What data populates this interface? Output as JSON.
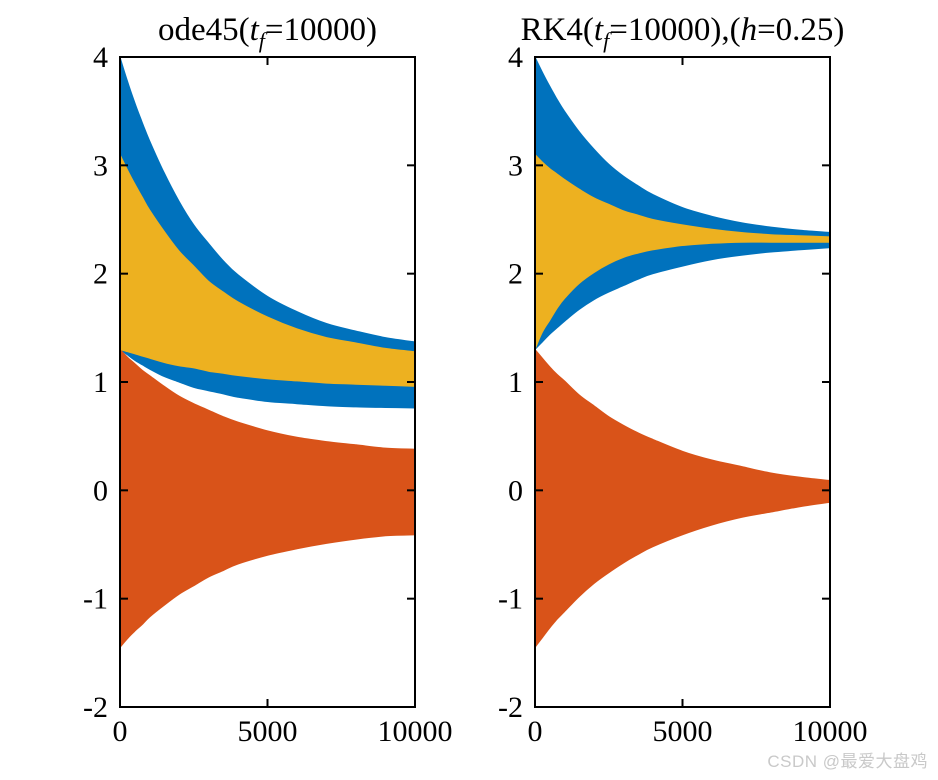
{
  "figure": {
    "background": "#ffffff",
    "axis_color": "#000000"
  },
  "watermark": {
    "text": "CSDN @最爱大盘鸡",
    "color": "#c9c9c9"
  },
  "chart_data": [
    {
      "type": "area",
      "title": "ode45(tf=10000)",
      "title_parts": [
        {
          "t": "ode45(",
          "s": "n"
        },
        {
          "t": "t",
          "s": "i"
        },
        {
          "t": "f",
          "s": "sub"
        },
        {
          "t": "=10000)",
          "s": "n"
        }
      ],
      "xlabel": "",
      "ylabel": "",
      "xlim": [
        0,
        10000
      ],
      "ylim": [
        -2,
        4
      ],
      "xticks": [
        0,
        5000,
        10000
      ],
      "xtick_labels": [
        "0",
        "5000",
        "10000"
      ],
      "yticks": [
        -2,
        -1,
        0,
        1,
        2,
        3,
        4
      ],
      "ytick_labels": [
        "-2",
        "-1",
        "0",
        "1",
        "2",
        "3",
        "4"
      ],
      "grid": false,
      "legend": "none",
      "t": [
        0,
        250,
        500,
        750,
        1000,
        1500,
        2000,
        2500,
        3000,
        3500,
        4000,
        5000,
        6000,
        7000,
        8000,
        9000,
        10000
      ],
      "series": [
        {
          "name": "series-blue-oscillation-band",
          "color": "#0072BD",
          "upper": [
            4.0,
            3.78,
            3.58,
            3.4,
            3.23,
            2.93,
            2.67,
            2.45,
            2.28,
            2.12,
            1.99,
            1.79,
            1.65,
            1.54,
            1.47,
            1.41,
            1.37
          ],
          "lower": [
            1.3,
            1.25,
            1.2,
            1.16,
            1.12,
            1.05,
            1.0,
            0.95,
            0.92,
            0.89,
            0.86,
            0.82,
            0.8,
            0.78,
            0.77,
            0.765,
            0.76
          ]
        },
        {
          "name": "series-orange-oscillation-band",
          "color": "#D95319",
          "upper": [
            1.3,
            1.23,
            1.17,
            1.11,
            1.06,
            0.96,
            0.87,
            0.8,
            0.74,
            0.68,
            0.63,
            0.55,
            0.49,
            0.45,
            0.42,
            0.39,
            0.38
          ],
          "lower": [
            -1.45,
            -1.37,
            -1.3,
            -1.24,
            -1.17,
            -1.06,
            -0.96,
            -0.88,
            -0.8,
            -0.74,
            -0.68,
            -0.6,
            -0.54,
            -0.49,
            -0.45,
            -0.42,
            -0.41
          ]
        },
        {
          "name": "series-yellow-oscillation-band",
          "color": "#EDB120",
          "upper": [
            3.1,
            2.96,
            2.83,
            2.71,
            2.59,
            2.39,
            2.21,
            2.07,
            1.93,
            1.83,
            1.74,
            1.6,
            1.49,
            1.41,
            1.36,
            1.31,
            1.28
          ],
          "lower": [
            1.3,
            1.28,
            1.26,
            1.24,
            1.22,
            1.18,
            1.15,
            1.13,
            1.1,
            1.08,
            1.06,
            1.03,
            1.01,
            0.99,
            0.98,
            0.97,
            0.96
          ]
        }
      ]
    },
    {
      "type": "area",
      "title": "RK4(tf=10000),(h=0.25)",
      "title_parts": [
        {
          "t": "RK4(",
          "s": "n"
        },
        {
          "t": "t",
          "s": "i"
        },
        {
          "t": "f",
          "s": "sub"
        },
        {
          "t": "=10000),(",
          "s": "n"
        },
        {
          "t": "h",
          "s": "i"
        },
        {
          "t": "=0.25)",
          "s": "n"
        }
      ],
      "xlabel": "",
      "ylabel": "",
      "xlim": [
        0,
        10000
      ],
      "ylim": [
        -2,
        4
      ],
      "xticks": [
        0,
        5000,
        10000
      ],
      "xtick_labels": [
        "0",
        "5000",
        "10000"
      ],
      "yticks": [
        -2,
        -1,
        0,
        1,
        2,
        3,
        4
      ],
      "ytick_labels": [
        "-2",
        "-1",
        "0",
        "1",
        "2",
        "3",
        "4"
      ],
      "grid": false,
      "legend": "none",
      "t": [
        0,
        250,
        500,
        750,
        1000,
        1500,
        2000,
        2500,
        3000,
        3500,
        4000,
        5000,
        6000,
        7000,
        8000,
        9000,
        10000
      ],
      "series": [
        {
          "name": "series-blue-oscillation-band",
          "color": "#0072BD",
          "upper": [
            4.0,
            3.86,
            3.73,
            3.61,
            3.5,
            3.31,
            3.15,
            3.01,
            2.9,
            2.81,
            2.73,
            2.61,
            2.53,
            2.47,
            2.43,
            2.4,
            2.38
          ],
          "lower": [
            1.3,
            1.37,
            1.44,
            1.5,
            1.56,
            1.67,
            1.76,
            1.83,
            1.89,
            1.95,
            2.0,
            2.07,
            2.13,
            2.17,
            2.2,
            2.22,
            2.24
          ]
        },
        {
          "name": "series-orange-oscillation-band",
          "color": "#D95319",
          "upper": [
            1.3,
            1.22,
            1.14,
            1.07,
            1.01,
            0.88,
            0.78,
            0.68,
            0.6,
            0.53,
            0.47,
            0.36,
            0.28,
            0.22,
            0.16,
            0.12,
            0.09
          ],
          "lower": [
            -1.45,
            -1.36,
            -1.27,
            -1.19,
            -1.12,
            -0.98,
            -0.86,
            -0.76,
            -0.67,
            -0.59,
            -0.52,
            -0.41,
            -0.32,
            -0.25,
            -0.2,
            -0.15,
            -0.11
          ]
        },
        {
          "name": "series-yellow-oscillation-band",
          "color": "#EDB120",
          "upper": [
            3.1,
            3.03,
            2.97,
            2.92,
            2.87,
            2.78,
            2.7,
            2.64,
            2.58,
            2.54,
            2.5,
            2.45,
            2.41,
            2.38,
            2.36,
            2.35,
            2.34
          ],
          "lower": [
            1.3,
            1.46,
            1.57,
            1.68,
            1.77,
            1.91,
            2.01,
            2.09,
            2.15,
            2.19,
            2.22,
            2.26,
            2.28,
            2.29,
            2.29,
            2.29,
            2.29
          ]
        }
      ]
    }
  ]
}
